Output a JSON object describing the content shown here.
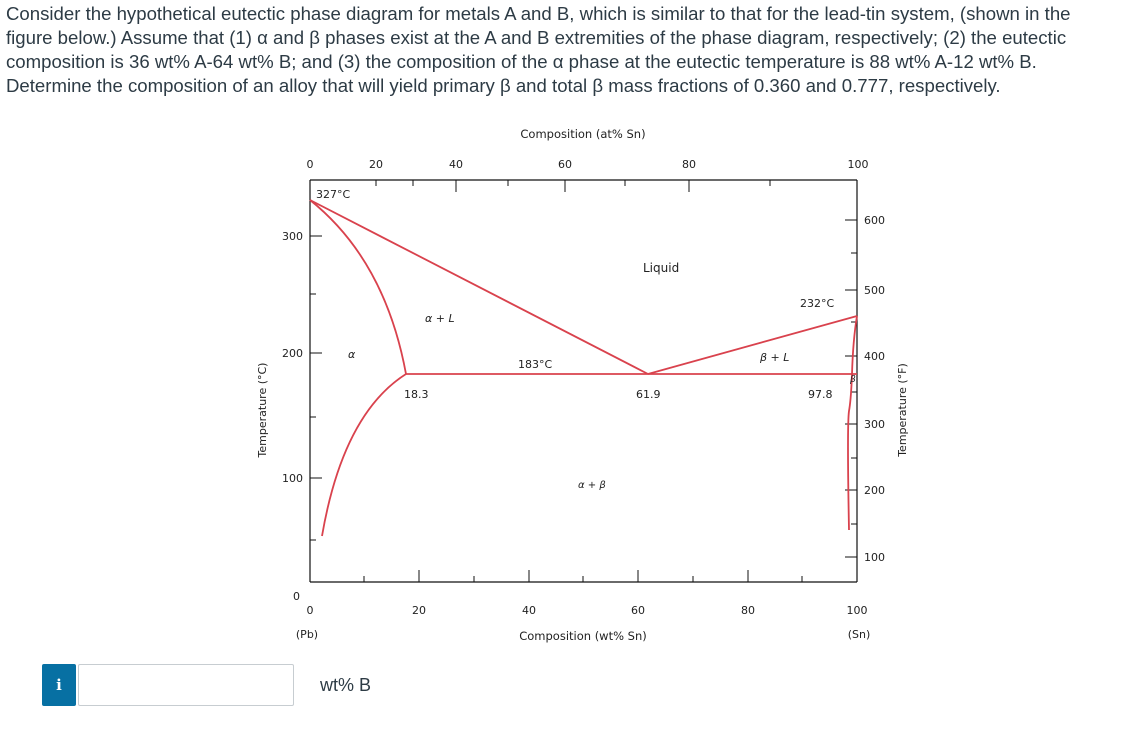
{
  "question": {
    "line1": "Consider the hypothetical eutectic phase diagram for metals A and B, which is similar to that for the lead-tin system, (shown in the",
    "line2": "figure below.) Assume that (1) α and β phases exist at the A and B extremities of the phase diagram, respectively; (2) the eutectic",
    "line3": "composition is 36 wt% A-64 wt% B; and (3) the composition of the α phase at the eutectic temperature is 88 wt% A-12 wt% B.",
    "line4": "Determine the composition of an alloy that will yield primary β and total β mass fractions of 0.360 and 0.777, respectively."
  },
  "diagram": {
    "top_axis_title": "Composition (at% Sn)",
    "bottom_axis_title": "Composition (wt% Sn)",
    "left_axis_title": "Temperature (°C)",
    "right_axis_title": "Temperature (°F)",
    "top_ticks": [
      "0",
      "20",
      "40",
      "60",
      "80",
      "100"
    ],
    "bottom_ticks": [
      "0",
      "20",
      "40",
      "60",
      "80",
      "100"
    ],
    "left_ticks": [
      "300",
      "200",
      "100",
      "0"
    ],
    "right_ticks": [
      "600",
      "500",
      "400",
      "300",
      "200",
      "100"
    ],
    "left_end_label": "(Pb)",
    "right_end_label": "(Sn)",
    "label_pb_melt": "327°C",
    "label_sn_melt": "232°C",
    "label_eutectic_temp": "183°C",
    "label_alpha_limit": "18.3",
    "label_eutectic_comp": "61.9",
    "label_beta_limit": "97.8",
    "region_liquid": "Liquid",
    "region_alpha_liquid": "α + L",
    "region_beta_liquid": "β + L",
    "region_alpha": "α",
    "region_beta": "β",
    "region_alpha_beta": "α + β",
    "line_color": "#d9424d"
  },
  "answer": {
    "info_label": "i",
    "value": "",
    "placeholder": "",
    "units": "wt% B"
  }
}
